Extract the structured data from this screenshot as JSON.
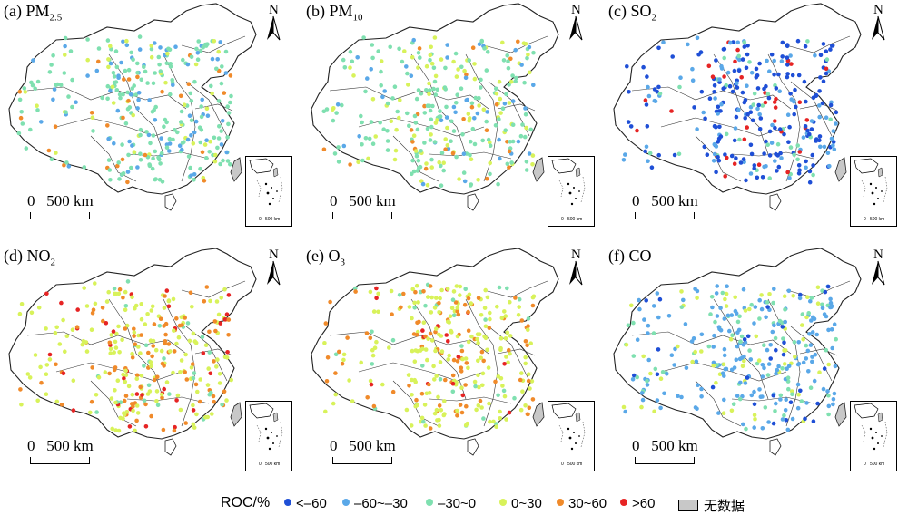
{
  "panels": [
    {
      "id": "pm25",
      "title_prefix": "(a) PM",
      "title_sub": "2.5",
      "title_suffix": ""
    },
    {
      "id": "pm10",
      "title_prefix": "(b) PM",
      "title_sub": "10",
      "title_suffix": ""
    },
    {
      "id": "so2",
      "title_prefix": "(c) SO",
      "title_sub": "2",
      "title_suffix": ""
    },
    {
      "id": "no2",
      "title_prefix": "(d) NO",
      "title_sub": "2",
      "title_suffix": ""
    },
    {
      "id": "o3",
      "title_prefix": "(e) O",
      "title_sub": "3",
      "title_suffix": ""
    },
    {
      "id": "co",
      "title_prefix": "(f) CO",
      "title_sub": "",
      "title_suffix": ""
    }
  ],
  "north_label": "N",
  "scale_label": "0   500 km",
  "inset_scale_label": "0   500 km",
  "legend": {
    "title": "ROC/%",
    "items": [
      {
        "label": "<–60",
        "color": "#1f4fd6"
      },
      {
        "label": "–60~–30",
        "color": "#5aa8e8"
      },
      {
        "label": "–30~0",
        "color": "#7fe0b0"
      },
      {
        "label": "0~30",
        "color": "#d8f25a"
      },
      {
        "label": "30~60",
        "color": "#f08a2a"
      },
      {
        "label": ">60",
        "color": "#e62424"
      }
    ],
    "nodata_label": "无数据"
  },
  "dominant_classes": {
    "pm25": [
      2,
      1,
      3,
      4
    ],
    "pm10": [
      2,
      3,
      1,
      4
    ],
    "so2": [
      0,
      1,
      2,
      5
    ],
    "no2": [
      3,
      4,
      5,
      2
    ],
    "o3": [
      3,
      4,
      2,
      5
    ],
    "co": [
      1,
      2,
      3,
      0
    ]
  }
}
